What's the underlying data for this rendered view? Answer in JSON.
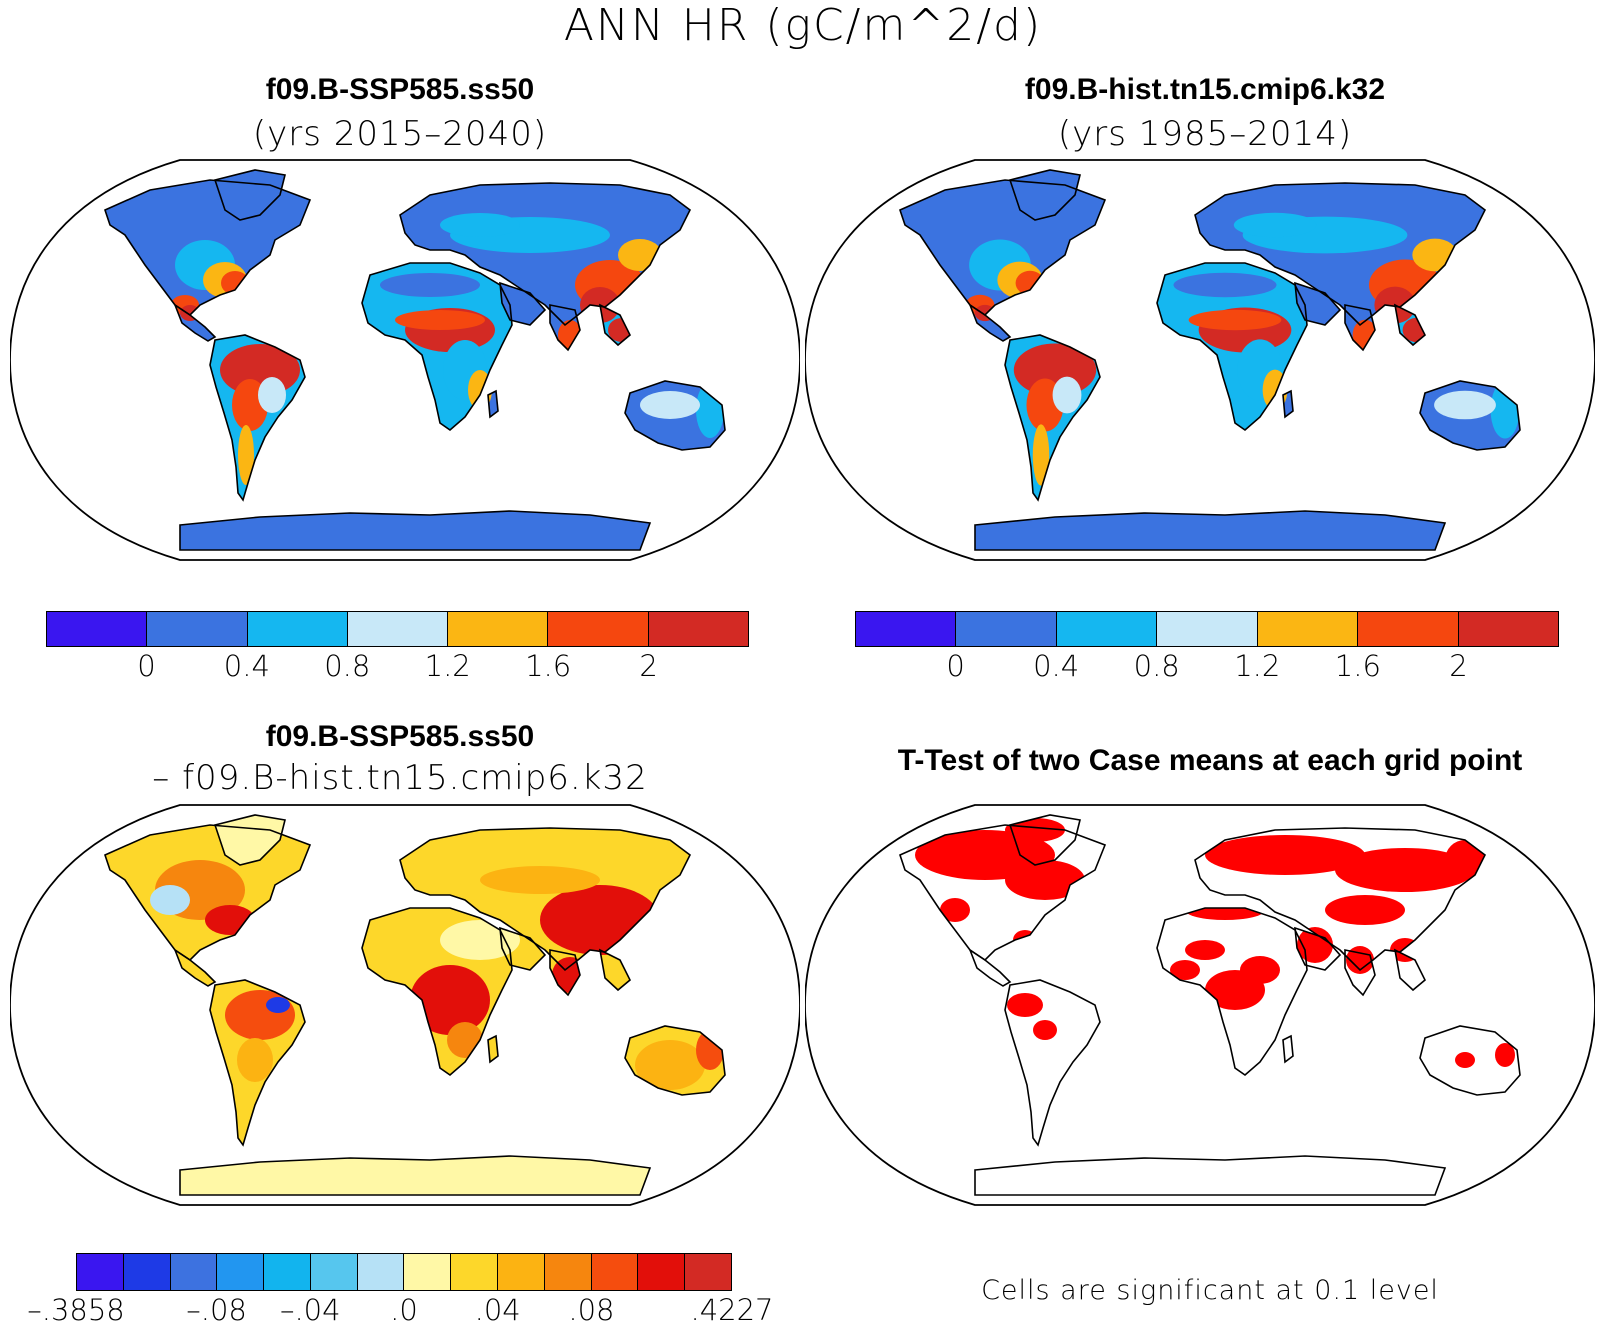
{
  "title": "ANN HR (gC/m^2/d)",
  "panels": {
    "top_left": {
      "case": "f09.B-SSP585.ss50",
      "years": "(yrs 2015–2040)",
      "palette": {
        "ocean": "#ffffff",
        "land_low": "#3b73e0",
        "land_mid": "#15b7f0",
        "land_light": "#c8e8f8",
        "warm1": "#fbb613",
        "warm2": "#f5470f",
        "warm3": "#d32a24"
      }
    },
    "top_right": {
      "case": "f09.B-hist.tn15.cmip6.k32",
      "years": "(yrs 1985–2014)"
    },
    "bottom_left": {
      "case": "f09.B-SSP585.ss50",
      "subtract": "– f09.B-hist.tn15.cmip6.k32"
    },
    "bottom_right": {
      "title": "T-Test of two Case means at each grid point",
      "note": "Cells are significant at 0.1 level",
      "significant_color": "#ff0000"
    }
  },
  "colorbar_main": {
    "colors": [
      "#3a16f0",
      "#3b73e0",
      "#15b7f0",
      "#c8e8f8",
      "#fbb613",
      "#f5470f",
      "#d32a24"
    ],
    "ticks": [
      "0",
      "0.4",
      "0.8",
      "1.2",
      "1.6",
      "2"
    ]
  },
  "colorbar_diff": {
    "colors": [
      "#3a16f0",
      "#1e3ae6",
      "#3d72e0",
      "#2296f0",
      "#12b4ee",
      "#56c6ee",
      "#b6e1f6",
      "#fff8a6",
      "#fdd72a",
      "#fcb312",
      "#f6860e",
      "#f54d0e",
      "#e20f0a",
      "#d32a24"
    ],
    "ticks": [
      "–.3858",
      "–.08",
      "–.04",
      ".0",
      ".04",
      ".08",
      ".4227"
    ]
  }
}
